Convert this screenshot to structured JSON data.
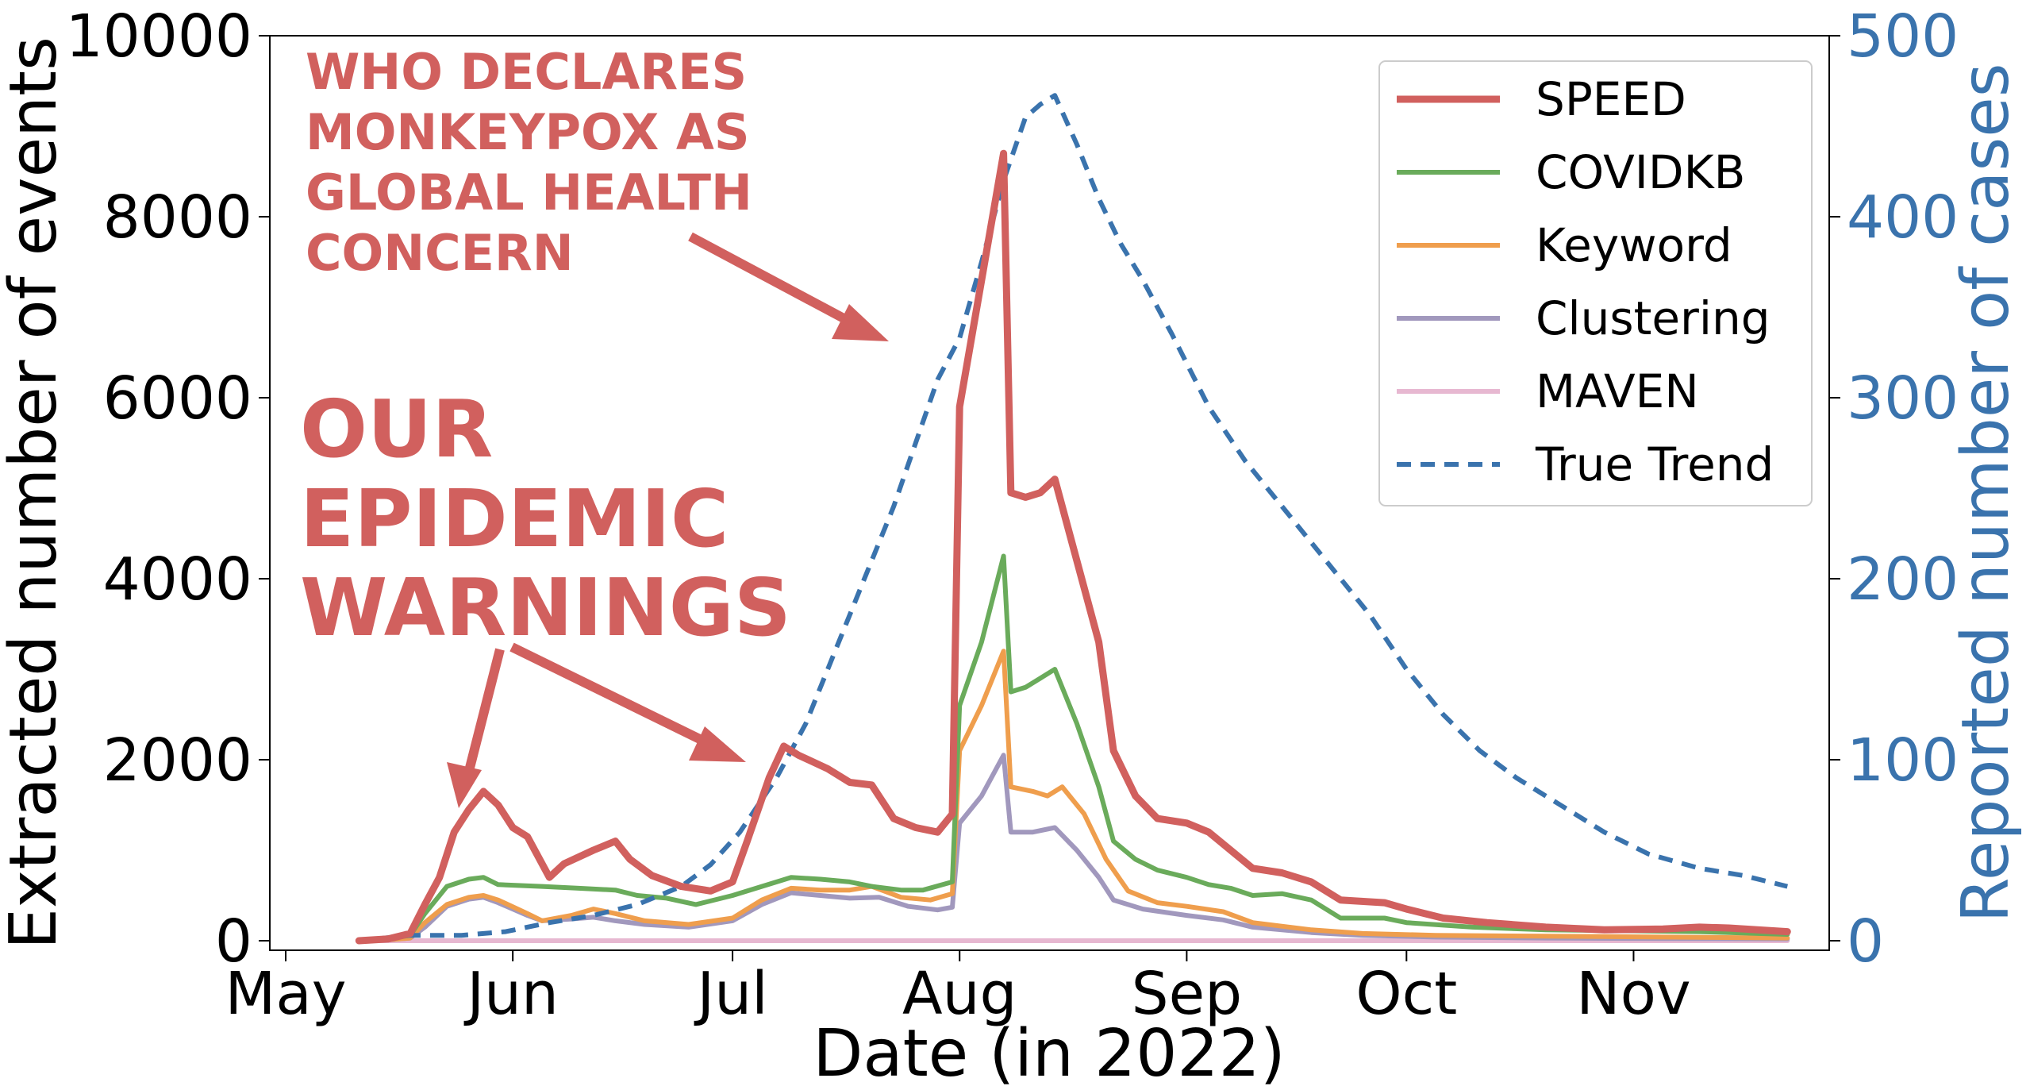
{
  "chart_data": {
    "type": "line",
    "xlabel": "Date (in 2022)",
    "ylabel": "Extracted number of events",
    "y2label": "Reported number of cases",
    "ylim": [
      0,
      10000
    ],
    "y2lim": [
      0,
      500
    ],
    "yticks": [
      "0",
      "2000",
      "4000",
      "6000",
      "8000",
      "10000"
    ],
    "y2ticks": [
      "0",
      "100",
      "200",
      "300",
      "400",
      "500"
    ],
    "xlim": [
      "2022-05-01",
      "2022-11-25"
    ],
    "xticks": [
      {
        "date": "2022-05-01",
        "label": "May"
      },
      {
        "date": "2022-06-01",
        "label": "Jun"
      },
      {
        "date": "2022-07-01",
        "label": "Jul"
      },
      {
        "date": "2022-08-01",
        "label": "Aug"
      },
      {
        "date": "2022-09-01",
        "label": "Sep"
      },
      {
        "date": "2022-10-01",
        "label": "Oct"
      },
      {
        "date": "2022-11-01",
        "label": "Nov"
      }
    ],
    "grid": false,
    "legend_position": "top-right",
    "series": [
      {
        "name": "SPEED",
        "color": "#d1605e",
        "dash": "solid",
        "axis": "left",
        "points": [
          [
            "2022-05-11",
            0
          ],
          [
            "2022-05-15",
            20
          ],
          [
            "2022-05-18",
            80
          ],
          [
            "2022-05-20",
            400
          ],
          [
            "2022-05-22",
            700
          ],
          [
            "2022-05-24",
            1200
          ],
          [
            "2022-05-26",
            1450
          ],
          [
            "2022-05-28",
            1650
          ],
          [
            "2022-05-30",
            1500
          ],
          [
            "2022-06-01",
            1250
          ],
          [
            "2022-06-03",
            1150
          ],
          [
            "2022-06-06",
            700
          ],
          [
            "2022-06-08",
            850
          ],
          [
            "2022-06-12",
            1000
          ],
          [
            "2022-06-15",
            1100
          ],
          [
            "2022-06-17",
            900
          ],
          [
            "2022-06-20",
            720
          ],
          [
            "2022-06-24",
            600
          ],
          [
            "2022-06-28",
            550
          ],
          [
            "2022-07-01",
            650
          ],
          [
            "2022-07-03",
            1100
          ],
          [
            "2022-07-06",
            1800
          ],
          [
            "2022-07-08",
            2150
          ],
          [
            "2022-07-10",
            2050
          ],
          [
            "2022-07-14",
            1900
          ],
          [
            "2022-07-17",
            1750
          ],
          [
            "2022-07-20",
            1720
          ],
          [
            "2022-07-23",
            1350
          ],
          [
            "2022-07-26",
            1250
          ],
          [
            "2022-07-29",
            1200
          ],
          [
            "2022-07-31",
            1400
          ],
          [
            "2022-08-01",
            5900
          ],
          [
            "2022-08-04",
            7300
          ],
          [
            "2022-08-07",
            8700
          ],
          [
            "2022-08-08",
            4950
          ],
          [
            "2022-08-10",
            4900
          ],
          [
            "2022-08-12",
            4950
          ],
          [
            "2022-08-14",
            5100
          ],
          [
            "2022-08-17",
            4200
          ],
          [
            "2022-08-20",
            3300
          ],
          [
            "2022-08-22",
            2100
          ],
          [
            "2022-08-25",
            1600
          ],
          [
            "2022-08-28",
            1350
          ],
          [
            "2022-09-01",
            1300
          ],
          [
            "2022-09-04",
            1200
          ],
          [
            "2022-09-07",
            1000
          ],
          [
            "2022-09-10",
            800
          ],
          [
            "2022-09-14",
            750
          ],
          [
            "2022-09-18",
            650
          ],
          [
            "2022-09-22",
            450
          ],
          [
            "2022-09-28",
            420
          ],
          [
            "2022-10-01",
            350
          ],
          [
            "2022-10-06",
            250
          ],
          [
            "2022-10-12",
            200
          ],
          [
            "2022-10-20",
            150
          ],
          [
            "2022-10-28",
            120
          ],
          [
            "2022-11-05",
            130
          ],
          [
            "2022-11-10",
            150
          ],
          [
            "2022-11-14",
            140
          ],
          [
            "2022-11-22",
            100
          ]
        ]
      },
      {
        "name": "COVIDKB",
        "color": "#6aab5b",
        "dash": "solid",
        "axis": "left",
        "points": [
          [
            "2022-05-11",
            0
          ],
          [
            "2022-05-15",
            20
          ],
          [
            "2022-05-18",
            60
          ],
          [
            "2022-05-20",
            300
          ],
          [
            "2022-05-23",
            600
          ],
          [
            "2022-05-26",
            680
          ],
          [
            "2022-05-28",
            700
          ],
          [
            "2022-05-30",
            620
          ],
          [
            "2022-06-05",
            600
          ],
          [
            "2022-06-10",
            580
          ],
          [
            "2022-06-15",
            560
          ],
          [
            "2022-06-18",
            500
          ],
          [
            "2022-06-22",
            470
          ],
          [
            "2022-06-26",
            400
          ],
          [
            "2022-07-01",
            500
          ],
          [
            "2022-07-05",
            600
          ],
          [
            "2022-07-09",
            700
          ],
          [
            "2022-07-13",
            680
          ],
          [
            "2022-07-17",
            650
          ],
          [
            "2022-07-20",
            600
          ],
          [
            "2022-07-24",
            560
          ],
          [
            "2022-07-27",
            560
          ],
          [
            "2022-07-31",
            650
          ],
          [
            "2022-08-01",
            2600
          ],
          [
            "2022-08-04",
            3300
          ],
          [
            "2022-08-07",
            4250
          ],
          [
            "2022-08-08",
            2750
          ],
          [
            "2022-08-10",
            2800
          ],
          [
            "2022-08-12",
            2900
          ],
          [
            "2022-08-14",
            3000
          ],
          [
            "2022-08-17",
            2400
          ],
          [
            "2022-08-20",
            1700
          ],
          [
            "2022-08-22",
            1100
          ],
          [
            "2022-08-25",
            900
          ],
          [
            "2022-08-28",
            780
          ],
          [
            "2022-09-01",
            700
          ],
          [
            "2022-09-04",
            620
          ],
          [
            "2022-09-07",
            580
          ],
          [
            "2022-09-10",
            500
          ],
          [
            "2022-09-14",
            520
          ],
          [
            "2022-09-18",
            450
          ],
          [
            "2022-09-22",
            250
          ],
          [
            "2022-09-28",
            250
          ],
          [
            "2022-10-01",
            200
          ],
          [
            "2022-10-10",
            150
          ],
          [
            "2022-10-20",
            120
          ],
          [
            "2022-11-01",
            110
          ],
          [
            "2022-11-10",
            100
          ],
          [
            "2022-11-22",
            70
          ]
        ]
      },
      {
        "name": "Keyword",
        "color": "#ef9e4d",
        "dash": "solid",
        "axis": "left",
        "points": [
          [
            "2022-05-11",
            0
          ],
          [
            "2022-05-15",
            10
          ],
          [
            "2022-05-18",
            30
          ],
          [
            "2022-05-20",
            200
          ],
          [
            "2022-05-23",
            400
          ],
          [
            "2022-05-26",
            480
          ],
          [
            "2022-05-28",
            500
          ],
          [
            "2022-05-30",
            450
          ],
          [
            "2022-06-03",
            300
          ],
          [
            "2022-06-05",
            220
          ],
          [
            "2022-06-09",
            280
          ],
          [
            "2022-06-12",
            350
          ],
          [
            "2022-06-15",
            300
          ],
          [
            "2022-06-19",
            220
          ],
          [
            "2022-06-25",
            180
          ],
          [
            "2022-07-01",
            250
          ],
          [
            "2022-07-05",
            450
          ],
          [
            "2022-07-09",
            580
          ],
          [
            "2022-07-13",
            560
          ],
          [
            "2022-07-17",
            560
          ],
          [
            "2022-07-20",
            600
          ],
          [
            "2022-07-24",
            480
          ],
          [
            "2022-07-28",
            450
          ],
          [
            "2022-07-31",
            520
          ],
          [
            "2022-08-01",
            2100
          ],
          [
            "2022-08-04",
            2600
          ],
          [
            "2022-08-07",
            3200
          ],
          [
            "2022-08-08",
            1700
          ],
          [
            "2022-08-11",
            1650
          ],
          [
            "2022-08-13",
            1600
          ],
          [
            "2022-08-15",
            1700
          ],
          [
            "2022-08-18",
            1400
          ],
          [
            "2022-08-21",
            900
          ],
          [
            "2022-08-24",
            550
          ],
          [
            "2022-08-28",
            420
          ],
          [
            "2022-09-01",
            380
          ],
          [
            "2022-09-06",
            320
          ],
          [
            "2022-09-10",
            200
          ],
          [
            "2022-09-18",
            120
          ],
          [
            "2022-09-25",
            80
          ],
          [
            "2022-10-05",
            60
          ],
          [
            "2022-10-20",
            50
          ],
          [
            "2022-11-05",
            40
          ],
          [
            "2022-11-22",
            30
          ]
        ]
      },
      {
        "name": "Clustering",
        "color": "#a198bd",
        "dash": "solid",
        "axis": "left",
        "points": [
          [
            "2022-05-11",
            0
          ],
          [
            "2022-05-15",
            10
          ],
          [
            "2022-05-18",
            30
          ],
          [
            "2022-05-20",
            150
          ],
          [
            "2022-05-23",
            380
          ],
          [
            "2022-05-26",
            460
          ],
          [
            "2022-05-28",
            480
          ],
          [
            "2022-05-30",
            420
          ],
          [
            "2022-06-03",
            280
          ],
          [
            "2022-06-05",
            220
          ],
          [
            "2022-06-09",
            240
          ],
          [
            "2022-06-12",
            260
          ],
          [
            "2022-06-15",
            220
          ],
          [
            "2022-06-19",
            180
          ],
          [
            "2022-06-25",
            150
          ],
          [
            "2022-07-01",
            220
          ],
          [
            "2022-07-05",
            400
          ],
          [
            "2022-07-09",
            530
          ],
          [
            "2022-07-13",
            500
          ],
          [
            "2022-07-17",
            470
          ],
          [
            "2022-07-21",
            480
          ],
          [
            "2022-07-25",
            380
          ],
          [
            "2022-07-29",
            340
          ],
          [
            "2022-07-31",
            370
          ],
          [
            "2022-08-01",
            1300
          ],
          [
            "2022-08-04",
            1600
          ],
          [
            "2022-08-07",
            2050
          ],
          [
            "2022-08-08",
            1200
          ],
          [
            "2022-08-11",
            1200
          ],
          [
            "2022-08-14",
            1250
          ],
          [
            "2022-08-17",
            1000
          ],
          [
            "2022-08-20",
            700
          ],
          [
            "2022-08-22",
            450
          ],
          [
            "2022-08-26",
            350
          ],
          [
            "2022-09-01",
            280
          ],
          [
            "2022-09-06",
            230
          ],
          [
            "2022-09-10",
            150
          ],
          [
            "2022-09-18",
            90
          ],
          [
            "2022-09-25",
            60
          ],
          [
            "2022-10-05",
            40
          ],
          [
            "2022-10-20",
            30
          ],
          [
            "2022-11-05",
            25
          ],
          [
            "2022-11-22",
            20
          ]
        ]
      },
      {
        "name": "MAVEN",
        "color": "#e7b8d1",
        "dash": "solid",
        "axis": "left",
        "points": [
          [
            "2022-05-11",
            0
          ],
          [
            "2022-11-22",
            0
          ]
        ]
      },
      {
        "name": "True Trend",
        "color": "#3a73ad",
        "dash": "dashed",
        "axis": "right",
        "points": [
          [
            "2022-05-11",
            0
          ],
          [
            "2022-05-18",
            3
          ],
          [
            "2022-05-25",
            3
          ],
          [
            "2022-05-31",
            5
          ],
          [
            "2022-06-06",
            10
          ],
          [
            "2022-06-12",
            14
          ],
          [
            "2022-06-18",
            20
          ],
          [
            "2022-06-24",
            30
          ],
          [
            "2022-06-28",
            42
          ],
          [
            "2022-07-02",
            60
          ],
          [
            "2022-07-07",
            90
          ],
          [
            "2022-07-11",
            120
          ],
          [
            "2022-07-15",
            160
          ],
          [
            "2022-07-19",
            200
          ],
          [
            "2022-07-23",
            240
          ],
          [
            "2022-07-26",
            275
          ],
          [
            "2022-07-29",
            310
          ],
          [
            "2022-08-01",
            333
          ],
          [
            "2022-08-04",
            375
          ],
          [
            "2022-08-07",
            420
          ],
          [
            "2022-08-10",
            455
          ],
          [
            "2022-08-12",
            462
          ],
          [
            "2022-08-14",
            467
          ],
          [
            "2022-08-17",
            440
          ],
          [
            "2022-08-20",
            410
          ],
          [
            "2022-08-23",
            385
          ],
          [
            "2022-08-26",
            365
          ],
          [
            "2022-08-30",
            335
          ],
          [
            "2022-09-04",
            295
          ],
          [
            "2022-09-09",
            265
          ],
          [
            "2022-09-14",
            240
          ],
          [
            "2022-09-20",
            210
          ],
          [
            "2022-09-26",
            180
          ],
          [
            "2022-10-01",
            150
          ],
          [
            "2022-10-06",
            125
          ],
          [
            "2022-10-11",
            105
          ],
          [
            "2022-10-16",
            90
          ],
          [
            "2022-10-22",
            75
          ],
          [
            "2022-10-28",
            60
          ],
          [
            "2022-11-03",
            48
          ],
          [
            "2022-11-10",
            40
          ],
          [
            "2022-11-16",
            36
          ],
          [
            "2022-11-22",
            30
          ]
        ]
      }
    ],
    "annotations": [
      {
        "lines": [
          "WHO DECLARES",
          "MONKEYPOX AS",
          "GLOBAL HEALTH",
          "CONCERN"
        ],
        "color": "#d1605e"
      },
      {
        "lines": [
          "OUR",
          "EPIDEMIC",
          "WARNINGS"
        ],
        "color": "#d1605e"
      }
    ]
  }
}
